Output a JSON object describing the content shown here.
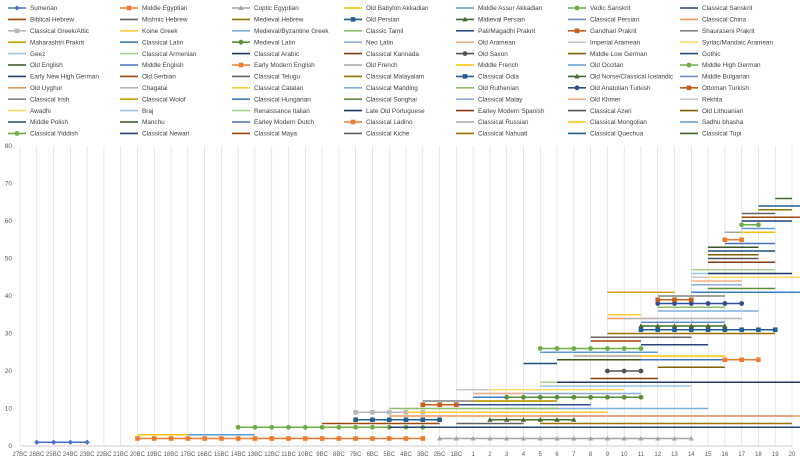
{
  "chart_data": {
    "type": "line",
    "title": "",
    "xlabel": "",
    "ylabel": "",
    "ylim": [
      0,
      80
    ],
    "yticks": [
      0,
      10,
      20,
      30,
      40,
      50,
      60,
      70,
      80
    ],
    "grid": "vertical",
    "legend_position": "top",
    "categories": [
      "27BC",
      "26BC",
      "25BC",
      "24BC",
      "23BC",
      "22BC",
      "21BC",
      "20BC",
      "19BC",
      "18BC",
      "17BC",
      "16BC",
      "15BC",
      "14BC",
      "13BC",
      "12BC",
      "11BC",
      "10BC",
      "9BC",
      "8BC",
      "7BC",
      "6BC",
      "5BC",
      "4BC",
      "3BC",
      "2BC",
      "1BC",
      "1",
      "2",
      "3",
      "4",
      "5",
      "6",
      "7",
      "8",
      "9",
      "10",
      "11",
      "12",
      "13",
      "14",
      "15",
      "16",
      "17",
      "18",
      "19",
      "20"
    ],
    "series": [
      {
        "name": "Sumerian",
        "color": "#4472C4",
        "start": 1,
        "end": 4,
        "y": 1,
        "marker": "diamond"
      },
      {
        "name": "Middle Egyptian",
        "color": "#ED7D31",
        "start": 7,
        "end": 24,
        "y": 2,
        "marker": "square"
      },
      {
        "name": "Coptic Egyptian",
        "color": "#A5A5A5",
        "start": 25,
        "end": 40,
        "y": 2,
        "marker": "triangle"
      },
      {
        "name": "Old Babylon Akkadian",
        "color": "#FFC000",
        "start": 7,
        "end": 13,
        "y": 3
      },
      {
        "name": "Middle Assur Akkadian",
        "color": "#5B9BD5",
        "start": 10,
        "end": 14,
        "y": 3
      },
      {
        "name": "Vedic Sanskrit",
        "color": "#70AD47",
        "start": 13,
        "end": 24,
        "y": 5,
        "marker": "circle"
      },
      {
        "name": "Classical Sanskrit",
        "color": "#264478",
        "start": 22,
        "end": 47,
        "y": 5
      },
      {
        "name": "Biblical Hebrew",
        "color": "#9E480E",
        "start": 18,
        "end": 25,
        "y": 6
      },
      {
        "name": "Mishnic Hebrew",
        "color": "#636363",
        "start": 26,
        "end": 30,
        "y": 6
      },
      {
        "name": "Medieval Hebrew",
        "color": "#997300",
        "start": 31,
        "end": 46,
        "y": 6
      },
      {
        "name": "Old Persian",
        "color": "#255E91",
        "start": 20,
        "end": 25,
        "y": 7,
        "marker": "square"
      },
      {
        "name": "Midieval Persian",
        "color": "#43682B",
        "start": 28,
        "end": 33,
        "y": 7,
        "marker": "triangle"
      },
      {
        "name": "Classical Persian",
        "color": "#698ED0",
        "start": 31,
        "end": 46,
        "y": 8
      },
      {
        "name": "Classical China",
        "color": "#F1975A",
        "start": 22,
        "end": 47,
        "y": 8
      },
      {
        "name": "Classical Greek/Attic",
        "color": "#B7B7B7",
        "start": 20,
        "end": 24,
        "y": 9,
        "marker": "square"
      },
      {
        "name": "Koine Greek",
        "color": "#FFCD33",
        "start": 23,
        "end": 35,
        "y": 9
      },
      {
        "name": "Medieval/Byzantine Greek",
        "color": "#7CAFDD",
        "start": 29,
        "end": 41,
        "y": 10
      },
      {
        "name": "Classic Tamil",
        "color": "#8CC168",
        "start": 22,
        "end": 32,
        "y": 10
      },
      {
        "name": "Pali/Magadhi Prakrit",
        "color": "#2E4F8F",
        "start": 24,
        "end": 34,
        "y": 11
      },
      {
        "name": "Gandhari Prakrit",
        "color": "#C65D1A",
        "start": 24,
        "end": 26,
        "y": 11,
        "marker": "square"
      },
      {
        "name": "Shauraseni Prakrit",
        "color": "#848484",
        "start": 24,
        "end": 32,
        "y": 12
      },
      {
        "name": "Maharashtri Prakrit",
        "color": "#C9A100",
        "start": 27,
        "end": 32,
        "y": 12
      },
      {
        "name": "Classical Latin",
        "color": "#3B7EC0",
        "start": 27,
        "end": 33,
        "y": 13
      },
      {
        "name": "Medieval Latin",
        "color": "#5E8E3A",
        "start": 29,
        "end": 37,
        "y": 13,
        "marker": "circle"
      },
      {
        "name": "Neo Latin",
        "color": "#8FAADC",
        "start": 27,
        "end": 37,
        "y": 14
      },
      {
        "name": "Old Aramean",
        "color": "#F4B183",
        "start": 27,
        "end": 30,
        "y": 14
      },
      {
        "name": "Imperial Aramean",
        "color": "#C9C9C9",
        "start": 26,
        "end": 33,
        "y": 15
      },
      {
        "name": "Syriac/Mandaic Aramean",
        "color": "#FFD966",
        "start": 28,
        "end": 36,
        "y": 15
      },
      {
        "name": "Geez",
        "color": "#9DC3E6",
        "start": 31,
        "end": 40,
        "y": 16
      },
      {
        "name": "Classical Armenian",
        "color": "#A9D18E",
        "start": 31,
        "end": 43,
        "y": 17
      },
      {
        "name": "Classical Arabic",
        "color": "#203864",
        "start": 32,
        "end": 47,
        "y": 17
      },
      {
        "name": "Classical Kannada",
        "color": "#843C0C",
        "start": 34,
        "end": 38,
        "y": 18
      },
      {
        "name": "Old Saxon",
        "color": "#525252",
        "start": 35,
        "end": 37,
        "y": 20,
        "marker": "circle"
      },
      {
        "name": "Middle Low German",
        "color": "#806000",
        "start": 38,
        "end": 42,
        "y": 21
      },
      {
        "name": "Gothic",
        "color": "#1F4E79",
        "start": 30,
        "end": 32,
        "y": 22
      },
      {
        "name": "Old English",
        "color": "#375623",
        "start": 32,
        "end": 37,
        "y": 23
      },
      {
        "name": "Middle English",
        "color": "#4472C4",
        "start": 37,
        "end": 42,
        "y": 23
      },
      {
        "name": "Early Modern English",
        "color": "#ED7D31",
        "start": 42,
        "end": 44,
        "y": 23,
        "marker": "square"
      },
      {
        "name": "Old French",
        "color": "#A5A5A5",
        "start": 33,
        "end": 37,
        "y": 24
      },
      {
        "name": "Middle French",
        "color": "#FFC000",
        "start": 37,
        "end": 42,
        "y": 24
      },
      {
        "name": "Old Occitan",
        "color": "#5B9BD5",
        "start": 31,
        "end": 38,
        "y": 25
      },
      {
        "name": "Middle High German",
        "color": "#70AD47",
        "start": 31,
        "end": 37,
        "y": 26,
        "marker": "circle"
      },
      {
        "name": "Early New High German",
        "color": "#264478",
        "start": 37,
        "end": 41,
        "y": 27
      },
      {
        "name": "Old Serbian",
        "color": "#9E480E",
        "start": 34,
        "end": 37,
        "y": 28
      },
      {
        "name": "Classical Telugu",
        "color": "#636363",
        "start": 34,
        "end": 40,
        "y": 29
      },
      {
        "name": "Classical Malayalam",
        "color": "#997300",
        "start": 35,
        "end": 45,
        "y": 30
      },
      {
        "name": "Classical Odia",
        "color": "#255E91",
        "start": 37,
        "end": 45,
        "y": 31,
        "marker": "square"
      },
      {
        "name": "Old Norse/Classical Icelandic",
        "color": "#43682B",
        "start": 37,
        "end": 42,
        "y": 32,
        "marker": "triangle"
      },
      {
        "name": "Middle Bulgarian",
        "color": "#698ED0",
        "start": 37,
        "end": 42,
        "y": 33
      },
      {
        "name": "Old Uyghur",
        "color": "#F1975A",
        "start": 35,
        "end": 38,
        "y": 34
      },
      {
        "name": "Chagatai",
        "color": "#B7B7B7",
        "start": 36,
        "end": 43,
        "y": 34
      },
      {
        "name": "Classical Catalan",
        "color": "#FFCD33",
        "start": 35,
        "end": 37,
        "y": 35
      },
      {
        "name": "Classical Manding",
        "color": "#7CAFDD",
        "start": 38,
        "end": 44,
        "y": 36
      },
      {
        "name": "Old Ruthenian",
        "color": "#8CC168",
        "start": 38,
        "end": 42,
        "y": 37
      },
      {
        "name": "Old Anatolian Turkish",
        "color": "#2E4F8F",
        "start": 38,
        "end": 43,
        "y": 38,
        "marker": "circle"
      },
      {
        "name": "Ottoman Turkish",
        "color": "#C65D1A",
        "start": 38,
        "end": 40,
        "y": 39,
        "marker": "square"
      },
      {
        "name": "Classical Irish",
        "color": "#848484",
        "start": 38,
        "end": 42,
        "y": 40
      },
      {
        "name": "Classical Wolof",
        "color": "#C9A100",
        "start": 35,
        "end": 39,
        "y": 41
      },
      {
        "name": "Classical Hungarian",
        "color": "#3B7EC0",
        "start": 40,
        "end": 47,
        "y": 41
      },
      {
        "name": "Classical Songhai",
        "color": "#5E8E3A",
        "start": 41,
        "end": 45,
        "y": 42
      },
      {
        "name": "Classical Malay",
        "color": "#8FAADC",
        "start": 40,
        "end": 43,
        "y": 43
      },
      {
        "name": "Old Khmer",
        "color": "#F4B183",
        "start": 40,
        "end": 43,
        "y": 44
      },
      {
        "name": "Rekhta",
        "color": "#C9C9C9",
        "start": 40,
        "end": 43,
        "y": 45
      },
      {
        "name": "Awadhi",
        "color": "#FFD966",
        "start": 41,
        "end": 47,
        "y": 45
      },
      {
        "name": "Braj",
        "color": "#9DC3E6",
        "start": 40,
        "end": 45,
        "y": 46
      },
      {
        "name": "Renaissance Italian",
        "color": "#A9D18E",
        "start": 40,
        "end": 45,
        "y": 47
      },
      {
        "name": "Late Old Portuguese",
        "color": "#203864",
        "start": 41,
        "end": 46,
        "y": 46
      },
      {
        "name": "Earley Modern Spanish",
        "color": "#843C0C",
        "start": 41,
        "end": 45,
        "y": 49
      },
      {
        "name": "Classical Azeri",
        "color": "#525252",
        "start": 41,
        "end": 44,
        "y": 50
      },
      {
        "name": "Old Lithuanian",
        "color": "#806000",
        "start": 41,
        "end": 44,
        "y": 51
      },
      {
        "name": "Middle Polish",
        "color": "#1F4E79",
        "start": 41,
        "end": 45,
        "y": 52
      },
      {
        "name": "Manchu",
        "color": "#375623",
        "start": 41,
        "end": 44,
        "y": 53
      },
      {
        "name": "Earley Modern Dutch",
        "color": "#4472C4",
        "start": 42,
        "end": 45,
        "y": 54
      },
      {
        "name": "Classical Ladino",
        "color": "#ED7D31",
        "start": 42,
        "end": 43,
        "y": 55,
        "marker": "square"
      },
      {
        "name": "Classical Russian",
        "color": "#A5A5A5",
        "start": 42,
        "end": 45,
        "y": 57
      },
      {
        "name": "Classical Mongolian",
        "color": "#FFC000",
        "start": 43,
        "end": 45,
        "y": 57
      },
      {
        "name": "Sadhu bhasha",
        "color": "#5B9BD5",
        "start": 43,
        "end": 45,
        "y": 58
      },
      {
        "name": "Classical Yiddish",
        "color": "#70AD47",
        "start": 43,
        "end": 44,
        "y": 59,
        "marker": "circle"
      },
      {
        "name": "Classical Newari",
        "color": "#264478",
        "start": 43,
        "end": 46,
        "y": 60
      },
      {
        "name": "Classical Maya",
        "color": "#9E480E",
        "start": 43,
        "end": 47,
        "y": 61
      },
      {
        "name": "Classical Kiche",
        "color": "#636363",
        "start": 43,
        "end": 45,
        "y": 62
      },
      {
        "name": "Classical Nahuatl",
        "color": "#997300",
        "start": 44,
        "end": 46,
        "y": 63
      },
      {
        "name": "Classical Quechua",
        "color": "#255E91",
        "start": 44,
        "end": 47,
        "y": 64
      },
      {
        "name": "Classical Tupi",
        "color": "#43682B",
        "start": 45,
        "end": 46,
        "y": 66
      }
    ]
  }
}
